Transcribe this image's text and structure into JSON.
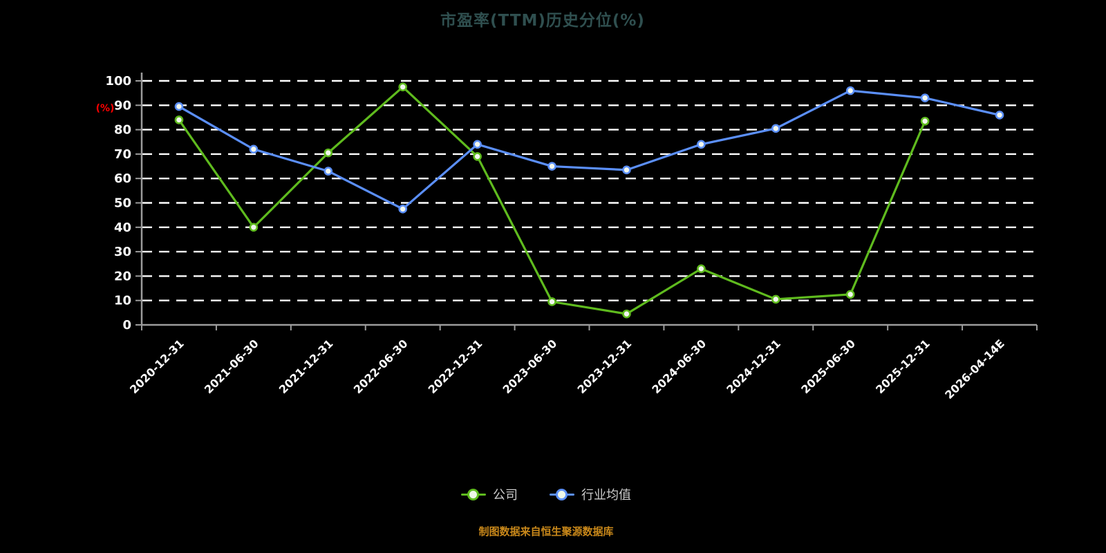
{
  "title": "市盈率(TTM)历史分位(%)",
  "footer": "制图数据来自恒生聚源数据库",
  "colors": {
    "background": "#000000",
    "title": "#2f4f4f",
    "footer": "#c9881a",
    "axis": "#9c9c9c",
    "grid": "#ffffff",
    "tick_label": "#ffffff",
    "ylabel": "#ff0000",
    "company": "#5fbb1e",
    "industry": "#5b8ff9",
    "legend_text": "#cccccc",
    "marker_fill": "#f2f7ee"
  },
  "legend": {
    "items": [
      {
        "label": "公司"
      },
      {
        "label": "行业均值"
      }
    ]
  },
  "chart_data": {
    "type": "line",
    "title": "市盈率(TTM)历史分位(%)",
    "xlabel": "",
    "ylabel": "(%)",
    "ylim": [
      0,
      100
    ],
    "ytick_step": 10,
    "grid": "dashed-horizontal",
    "legend_position": "bottom",
    "categories": [
      "2020-12-31",
      "2021-06-30",
      "2021-12-31",
      "2022-06-30",
      "2022-12-31",
      "2023-06-30",
      "2023-12-31",
      "2024-06-30",
      "2024-12-31",
      "2025-06-30",
      "2025-12-31",
      "2026-04-14E"
    ],
    "series": [
      {
        "name": "公司",
        "color_key": "company",
        "values": [
          84,
          40,
          70.5,
          97.5,
          69,
          9.5,
          4.5,
          23,
          10.5,
          12.5,
          83.5,
          null
        ]
      },
      {
        "name": "行业均值",
        "color_key": "industry",
        "values": [
          89.5,
          72,
          63,
          47.5,
          74,
          65,
          63.5,
          74,
          80.5,
          96,
          93,
          86
        ]
      }
    ]
  }
}
